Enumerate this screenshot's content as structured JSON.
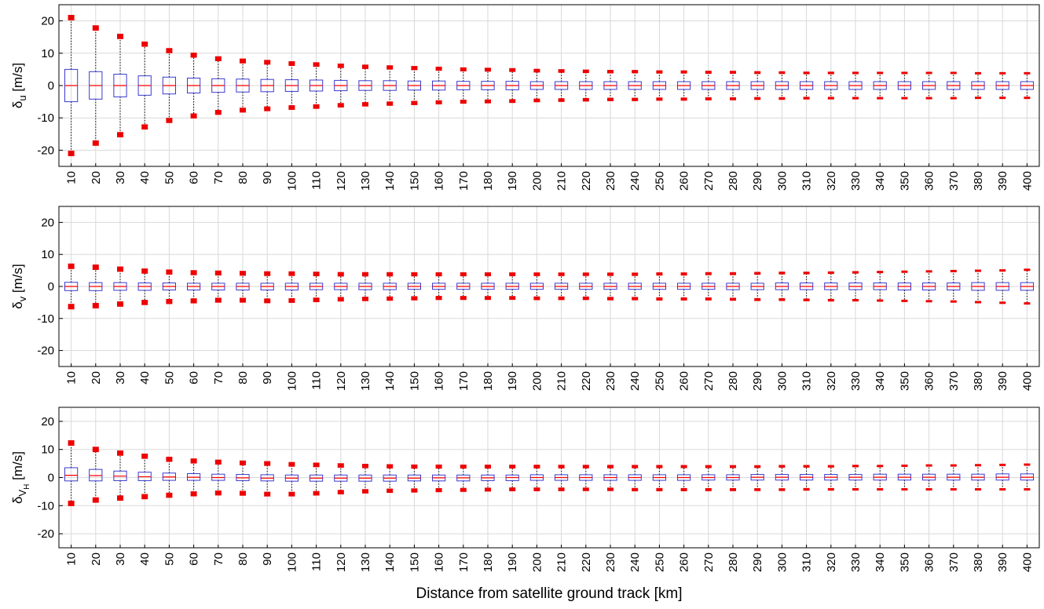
{
  "figure": {
    "xlabel": "Distance from satellite ground track [km]"
  },
  "colors": {
    "box": "#3a3ad0",
    "median": "#ff0000",
    "whisker": "#000000",
    "outlier": "#ee0000",
    "grid": "#d9d9d9",
    "axis": "#000000"
  },
  "chart_data": [
    {
      "type": "box",
      "ylabel": "δu [m/s]",
      "ylabel_symbol": "δ",
      "ylabel_sub": "u",
      "ylabel_sub2": "",
      "ylabel_unit": "[m/s]",
      "ylim": [
        -25,
        25
      ],
      "yticks": [
        -20,
        -10,
        0,
        10,
        20
      ],
      "grid": true,
      "categories": [
        "10",
        "20",
        "30",
        "40",
        "50",
        "60",
        "70",
        "80",
        "90",
        "100",
        "110",
        "120",
        "130",
        "140",
        "150",
        "160",
        "170",
        "180",
        "190",
        "200",
        "210",
        "220",
        "230",
        "240",
        "250",
        "260",
        "270",
        "280",
        "290",
        "300",
        "310",
        "320",
        "330",
        "340",
        "350",
        "360",
        "370",
        "380",
        "390",
        "400"
      ],
      "q1": [
        -5.0,
        -4.2,
        -3.5,
        -3.0,
        -2.6,
        -2.3,
        -2.1,
        -2.0,
        -1.9,
        -1.8,
        -1.7,
        -1.6,
        -1.5,
        -1.5,
        -1.4,
        -1.4,
        -1.3,
        -1.3,
        -1.3,
        -1.2,
        -1.2,
        -1.2,
        -1.2,
        -1.2,
        -1.2,
        -1.2,
        -1.2,
        -1.2,
        -1.2,
        -1.2,
        -1.2,
        -1.2,
        -1.2,
        -1.2,
        -1.2,
        -1.2,
        -1.2,
        -1.2,
        -1.2,
        -1.2
      ],
      "median": [
        0,
        0,
        0,
        0,
        0,
        0,
        0,
        0,
        0,
        0,
        0,
        0,
        0,
        0,
        0,
        0,
        0,
        0,
        0,
        0,
        0,
        0,
        0,
        0,
        0,
        0,
        0,
        0,
        0,
        0,
        0,
        0,
        0,
        0,
        0,
        0,
        0,
        0,
        0,
        0
      ],
      "q3": [
        5.0,
        4.3,
        3.5,
        3.0,
        2.6,
        2.3,
        2.1,
        2.0,
        1.9,
        1.8,
        1.7,
        1.6,
        1.5,
        1.5,
        1.4,
        1.4,
        1.3,
        1.3,
        1.3,
        1.2,
        1.2,
        1.2,
        1.2,
        1.2,
        1.2,
        1.2,
        1.2,
        1.2,
        1.2,
        1.2,
        1.2,
        1.2,
        1.2,
        1.2,
        1.2,
        1.2,
        1.2,
        1.2,
        1.2,
        1.2
      ],
      "whisker_low": [
        -21.0,
        -17.8,
        -15.2,
        -12.8,
        -10.8,
        -9.4,
        -8.3,
        -7.6,
        -7.2,
        -6.8,
        -6.5,
        -6.1,
        -5.8,
        -5.6,
        -5.4,
        -5.2,
        -5.0,
        -4.9,
        -4.8,
        -4.6,
        -4.5,
        -4.4,
        -4.3,
        -4.3,
        -4.2,
        -4.2,
        -4.1,
        -4.1,
        -4.0,
        -4.0,
        -3.9,
        -3.9,
        -3.9,
        -3.9,
        -3.9,
        -3.9,
        -3.9,
        -3.8,
        -3.8,
        -3.8
      ],
      "whisker_high": [
        21.0,
        17.8,
        15.2,
        12.8,
        10.8,
        9.4,
        8.3,
        7.6,
        7.2,
        6.8,
        6.5,
        6.1,
        5.8,
        5.6,
        5.4,
        5.2,
        5.0,
        4.9,
        4.8,
        4.6,
        4.5,
        4.4,
        4.3,
        4.3,
        4.2,
        4.2,
        4.1,
        4.1,
        4.0,
        4.0,
        3.9,
        3.9,
        3.9,
        3.9,
        3.9,
        3.9,
        3.9,
        3.8,
        3.8,
        3.8
      ]
    },
    {
      "type": "box",
      "ylabel": "δv [m/s]",
      "ylabel_symbol": "δ",
      "ylabel_sub": "v",
      "ylabel_sub2": "",
      "ylabel_unit": "[m/s]",
      "ylim": [
        -25,
        25
      ],
      "yticks": [
        -20,
        -10,
        0,
        10,
        20
      ],
      "grid": true,
      "categories": [
        "10",
        "20",
        "30",
        "40",
        "50",
        "60",
        "70",
        "80",
        "90",
        "100",
        "110",
        "120",
        "130",
        "140",
        "150",
        "160",
        "170",
        "180",
        "190",
        "200",
        "210",
        "220",
        "230",
        "240",
        "250",
        "260",
        "270",
        "280",
        "290",
        "300",
        "310",
        "320",
        "330",
        "340",
        "350",
        "360",
        "370",
        "380",
        "390",
        "400"
      ],
      "q1": [
        -1.3,
        -1.3,
        -1.2,
        -1.2,
        -1.1,
        -1.1,
        -1.1,
        -1.1,
        -1.1,
        -1.1,
        -1.0,
        -1.0,
        -1.0,
        -1.0,
        -0.9,
        -0.9,
        -0.9,
        -0.9,
        -0.9,
        -0.9,
        -0.9,
        -0.9,
        -0.9,
        -0.9,
        -0.9,
        -0.9,
        -0.9,
        -1.0,
        -1.0,
        -1.0,
        -1.0,
        -1.0,
        -1.0,
        -1.0,
        -1.1,
        -1.1,
        -1.1,
        -1.2,
        -1.2,
        -1.2
      ],
      "median": [
        0,
        0,
        0,
        0,
        0,
        0,
        0,
        0,
        0,
        0,
        0,
        0,
        0,
        0,
        0,
        0,
        0,
        0,
        0,
        0,
        0,
        0,
        0,
        0,
        0,
        0,
        0,
        0,
        0,
        0,
        0,
        0,
        0,
        0,
        0,
        0,
        0,
        0,
        0,
        0
      ],
      "q3": [
        1.3,
        1.2,
        1.2,
        1.1,
        1.1,
        1.0,
        1.0,
        1.0,
        1.0,
        1.0,
        1.0,
        1.0,
        1.0,
        1.0,
        1.0,
        1.0,
        1.0,
        1.0,
        1.0,
        1.0,
        1.0,
        1.0,
        1.0,
        1.0,
        1.0,
        1.0,
        1.0,
        1.0,
        1.0,
        1.1,
        1.1,
        1.1,
        1.1,
        1.1,
        1.1,
        1.1,
        1.1,
        1.2,
        1.2,
        1.2
      ],
      "whisker_low": [
        -6.3,
        -6.0,
        -5.5,
        -5.0,
        -4.7,
        -4.5,
        -4.3,
        -4.3,
        -4.5,
        -4.4,
        -4.2,
        -4.0,
        -3.9,
        -3.8,
        -3.7,
        -3.6,
        -3.6,
        -3.6,
        -3.6,
        -3.7,
        -3.7,
        -3.7,
        -3.8,
        -3.8,
        -3.9,
        -3.9,
        -3.9,
        -4.0,
        -4.1,
        -4.1,
        -4.2,
        -4.3,
        -4.3,
        -4.4,
        -4.5,
        -4.6,
        -4.7,
        -4.9,
        -5.1,
        -5.3
      ],
      "whisker_high": [
        6.3,
        6.0,
        5.4,
        4.8,
        4.5,
        4.3,
        4.2,
        4.1,
        4.0,
        4.0,
        3.9,
        3.8,
        3.8,
        3.8,
        3.8,
        3.8,
        3.8,
        3.8,
        3.8,
        3.8,
        3.8,
        3.8,
        3.8,
        3.8,
        3.9,
        3.9,
        4.0,
        4.0,
        4.1,
        4.2,
        4.2,
        4.3,
        4.4,
        4.5,
        4.6,
        4.7,
        4.8,
        4.9,
        5.0,
        5.2
      ]
    },
    {
      "type": "box",
      "ylabel": "δVH [m/s]",
      "ylabel_symbol": "δ",
      "ylabel_sub": "V",
      "ylabel_sub2": "H",
      "ylabel_unit": "[m/s]",
      "ylim": [
        -25,
        25
      ],
      "yticks": [
        -20,
        -10,
        0,
        10,
        20
      ],
      "grid": true,
      "categories": [
        "10",
        "20",
        "30",
        "40",
        "50",
        "60",
        "70",
        "80",
        "90",
        "100",
        "110",
        "120",
        "130",
        "140",
        "150",
        "160",
        "170",
        "180",
        "190",
        "200",
        "210",
        "220",
        "230",
        "240",
        "250",
        "260",
        "270",
        "280",
        "290",
        "300",
        "310",
        "320",
        "330",
        "340",
        "350",
        "360",
        "370",
        "380",
        "390",
        "400"
      ],
      "q1": [
        -1.2,
        -1.2,
        -1.1,
        -1.1,
        -1.0,
        -1.0,
        -1.0,
        -1.1,
        -1.2,
        -1.3,
        -1.3,
        -1.3,
        -1.3,
        -1.3,
        -1.2,
        -1.2,
        -1.2,
        -1.1,
        -1.1,
        -1.0,
        -1.0,
        -1.0,
        -1.0,
        -1.0,
        -1.0,
        -1.0,
        -0.9,
        -0.9,
        -0.9,
        -0.9,
        -0.9,
        -0.9,
        -0.9,
        -0.9,
        -0.9,
        -0.9,
        -0.9,
        -0.9,
        -0.9,
        -0.9
      ],
      "median": [
        0.8,
        0.7,
        0.5,
        0.3,
        0.2,
        0.1,
        0.0,
        -0.1,
        -0.2,
        -0.2,
        -0.2,
        -0.2,
        -0.2,
        -0.2,
        -0.2,
        -0.1,
        -0.1,
        -0.1,
        0.0,
        0.0,
        0.0,
        0.0,
        0.0,
        0.0,
        0.0,
        0.0,
        0.0,
        0.0,
        0.1,
        0.1,
        0.1,
        0.1,
        0.1,
        0.1,
        0.1,
        0.1,
        0.1,
        0.1,
        0.1,
        0.1
      ],
      "q3": [
        3.5,
        2.9,
        2.3,
        1.9,
        1.6,
        1.4,
        1.2,
        1.1,
        1.0,
        0.9,
        0.9,
        0.9,
        0.9,
        0.9,
        0.9,
        0.9,
        0.9,
        0.9,
        0.9,
        1.0,
        1.0,
        1.0,
        1.0,
        1.0,
        1.0,
        1.0,
        1.0,
        1.0,
        1.1,
        1.1,
        1.1,
        1.1,
        1.1,
        1.2,
        1.2,
        1.2,
        1.2,
        1.2,
        1.3,
        1.3
      ],
      "whisker_low": [
        -9.2,
        -8.0,
        -7.3,
        -6.8,
        -6.3,
        -5.8,
        -5.5,
        -5.6,
        -5.9,
        -5.9,
        -5.6,
        -5.2,
        -4.9,
        -4.7,
        -4.6,
        -4.5,
        -4.4,
        -4.3,
        -4.2,
        -4.2,
        -4.2,
        -4.2,
        -4.2,
        -4.3,
        -4.3,
        -4.3,
        -4.3,
        -4.3,
        -4.3,
        -4.3,
        -4.2,
        -4.2,
        -4.2,
        -4.2,
        -4.2,
        -4.2,
        -4.2,
        -4.2,
        -4.2,
        -4.2
      ],
      "whisker_high": [
        12.3,
        10.0,
        8.7,
        7.6,
        6.5,
        5.9,
        5.5,
        5.2,
        5.0,
        4.7,
        4.5,
        4.3,
        4.1,
        4.0,
        3.9,
        3.9,
        3.9,
        3.9,
        3.9,
        3.9,
        3.9,
        3.9,
        3.9,
        3.9,
        3.9,
        3.9,
        3.9,
        3.9,
        3.9,
        4.0,
        4.0,
        4.0,
        4.1,
        4.1,
        4.2,
        4.3,
        4.3,
        4.4,
        4.5,
        4.6
      ]
    }
  ]
}
